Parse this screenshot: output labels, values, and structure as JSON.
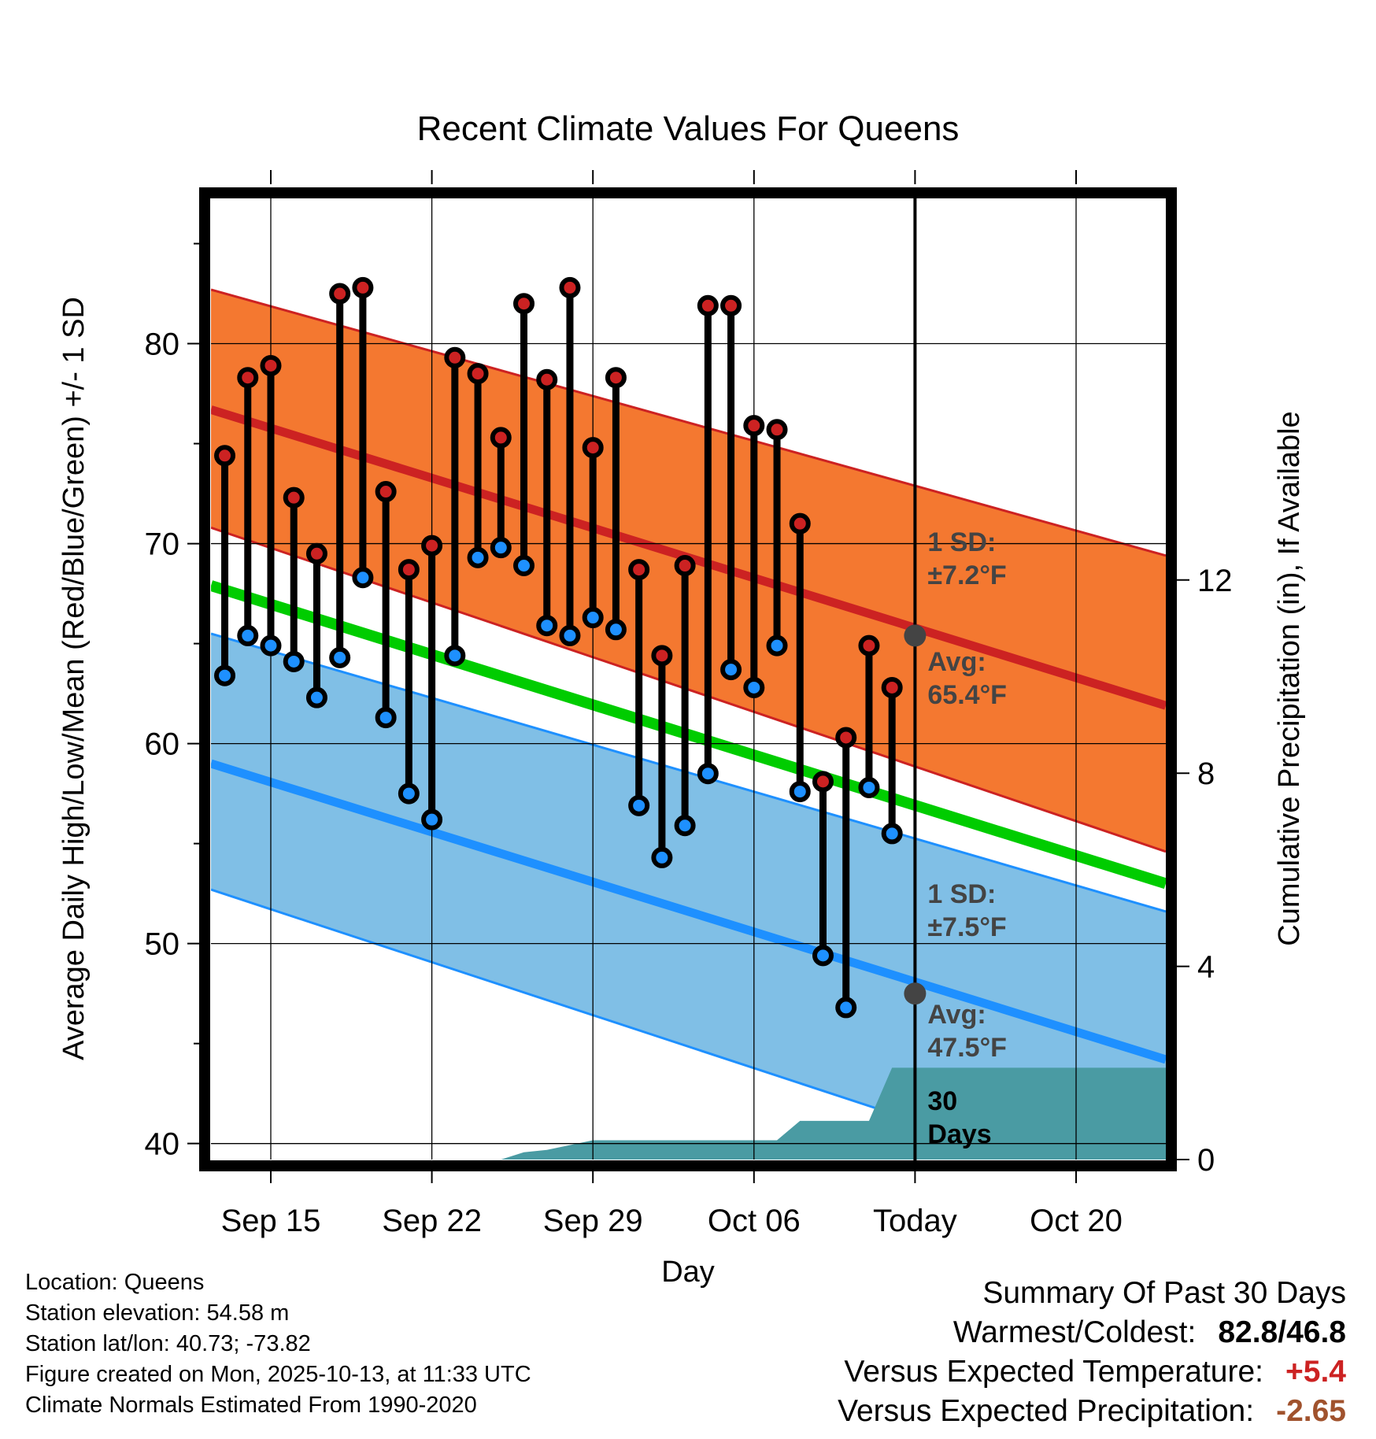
{
  "chart_data": {
    "type": "line",
    "title": "Recent Climate Values For Queens",
    "xlabel": "Day",
    "ylabel": "Average Daily High/Low/Mean (Red/Blue/Green) +/- 1 SD",
    "y2label": "Cumulative Precipitation (in), If Available",
    "ylim": [
      39.2,
      87.5
    ],
    "y2lim": [
      0,
      20
    ],
    "xlim": [
      -2.6,
      38.9
    ],
    "yticks": [
      40,
      50,
      60,
      70,
      80
    ],
    "y2ticks": [
      0,
      4,
      8,
      12
    ],
    "xticks": [
      {
        "day": 0,
        "label": "Sep 15"
      },
      {
        "day": 7,
        "label": "Sep 22"
      },
      {
        "day": 14,
        "label": "Sep 29"
      },
      {
        "day": 21,
        "label": "Oct 06"
      },
      {
        "day": 28,
        "label": "Today"
      },
      {
        "day": 35,
        "label": "Oct 20"
      }
    ],
    "today_day": 28,
    "normals": {
      "high_mean": {
        "start": 76.7,
        "end": 61.9
      },
      "high_upper": {
        "start": 82.7,
        "end": 69.4
      },
      "high_lower": {
        "start": 70.8,
        "end": 54.6
      },
      "mean": {
        "start": 67.9,
        "end": 53.0
      },
      "low_mean": {
        "start": 59.0,
        "end": 44.2
      },
      "low_upper": {
        "start": 65.5,
        "end": 51.6
      },
      "low_lower": {
        "start": 52.7,
        "end": 37.0
      }
    },
    "observed": {
      "days": [
        -2,
        -1,
        0,
        1,
        2,
        3,
        4,
        5,
        6,
        7,
        8,
        9,
        10,
        11,
        12,
        13,
        14,
        15,
        16,
        17,
        18,
        19,
        20,
        21,
        22,
        23,
        24,
        25,
        26,
        27
      ],
      "highs": [
        74.4,
        78.3,
        78.9,
        72.3,
        69.5,
        82.5,
        82.8,
        72.6,
        68.7,
        69.9,
        79.3,
        78.5,
        75.3,
        82.0,
        78.2,
        82.8,
        74.8,
        78.3,
        68.7,
        64.4,
        68.9,
        81.9,
        81.9,
        75.9,
        75.7,
        71.0,
        58.1,
        60.3,
        64.9,
        62.8
      ],
      "lows": [
        63.4,
        65.4,
        64.9,
        64.1,
        62.3,
        64.3,
        68.3,
        61.3,
        57.5,
        56.2,
        64.4,
        69.3,
        69.8,
        68.9,
        65.9,
        65.4,
        66.3,
        65.7,
        56.9,
        54.3,
        55.9,
        58.5,
        63.7,
        62.8,
        64.9,
        57.6,
        49.4,
        46.8,
        57.8,
        55.5
      ]
    },
    "precip": {
      "days": [
        -2,
        7,
        10,
        11,
        12,
        13,
        14,
        17,
        18,
        20,
        21,
        22,
        23,
        24,
        25,
        26,
        27,
        28,
        38.9
      ],
      "cumulative": [
        0,
        0,
        0,
        0.15,
        0.2,
        0.3,
        0.4,
        0.4,
        0.4,
        0.4,
        0.4,
        0.4,
        0.8,
        0.8,
        0.8,
        0.8,
        1.9,
        1.9,
        1.9
      ]
    },
    "annotations": {
      "high_sd": {
        "line1": "1 SD:",
        "line2": "±7.2°F"
      },
      "high_avg": {
        "line1": "Avg:",
        "line2": "65.4°F",
        "value": 65.4
      },
      "low_sd": {
        "line1": "1 SD:",
        "line2": "±7.5°F"
      },
      "low_avg": {
        "line1": "Avg:",
        "line2": "47.5°F",
        "value": 47.5
      },
      "days": {
        "line1": "30",
        "line2": "Days"
      }
    }
  },
  "info": {
    "location": "Location: Queens",
    "elevation": "Station elevation: 54.58 m",
    "latlon": "Station lat/lon: 40.73; -73.82",
    "created": "Figure created on Mon, 2025-10-13, at 11:33 UTC",
    "normals": "Climate Normals Estimated From 1990-2020"
  },
  "summary": {
    "title": "Summary Of Past 30 Days",
    "warmest_label": "Warmest/Coldest:",
    "warmest_value": "82.8/46.8",
    "temp_label": "Versus Expected Temperature:",
    "temp_value": "+5.4",
    "precip_label": "Versus Expected Precipitation:",
    "precip_value": "-2.65"
  },
  "colors": {
    "high_band": "#f47830",
    "high_line": "#cc2222",
    "low_band": "#80bfe6",
    "low_line": "#1e90ff",
    "mean_line": "#00cc00",
    "precip_fill": "#4a9ba3",
    "high_marker": "#cc2222",
    "low_marker": "#1e90ff",
    "avg_marker": "#444444"
  }
}
